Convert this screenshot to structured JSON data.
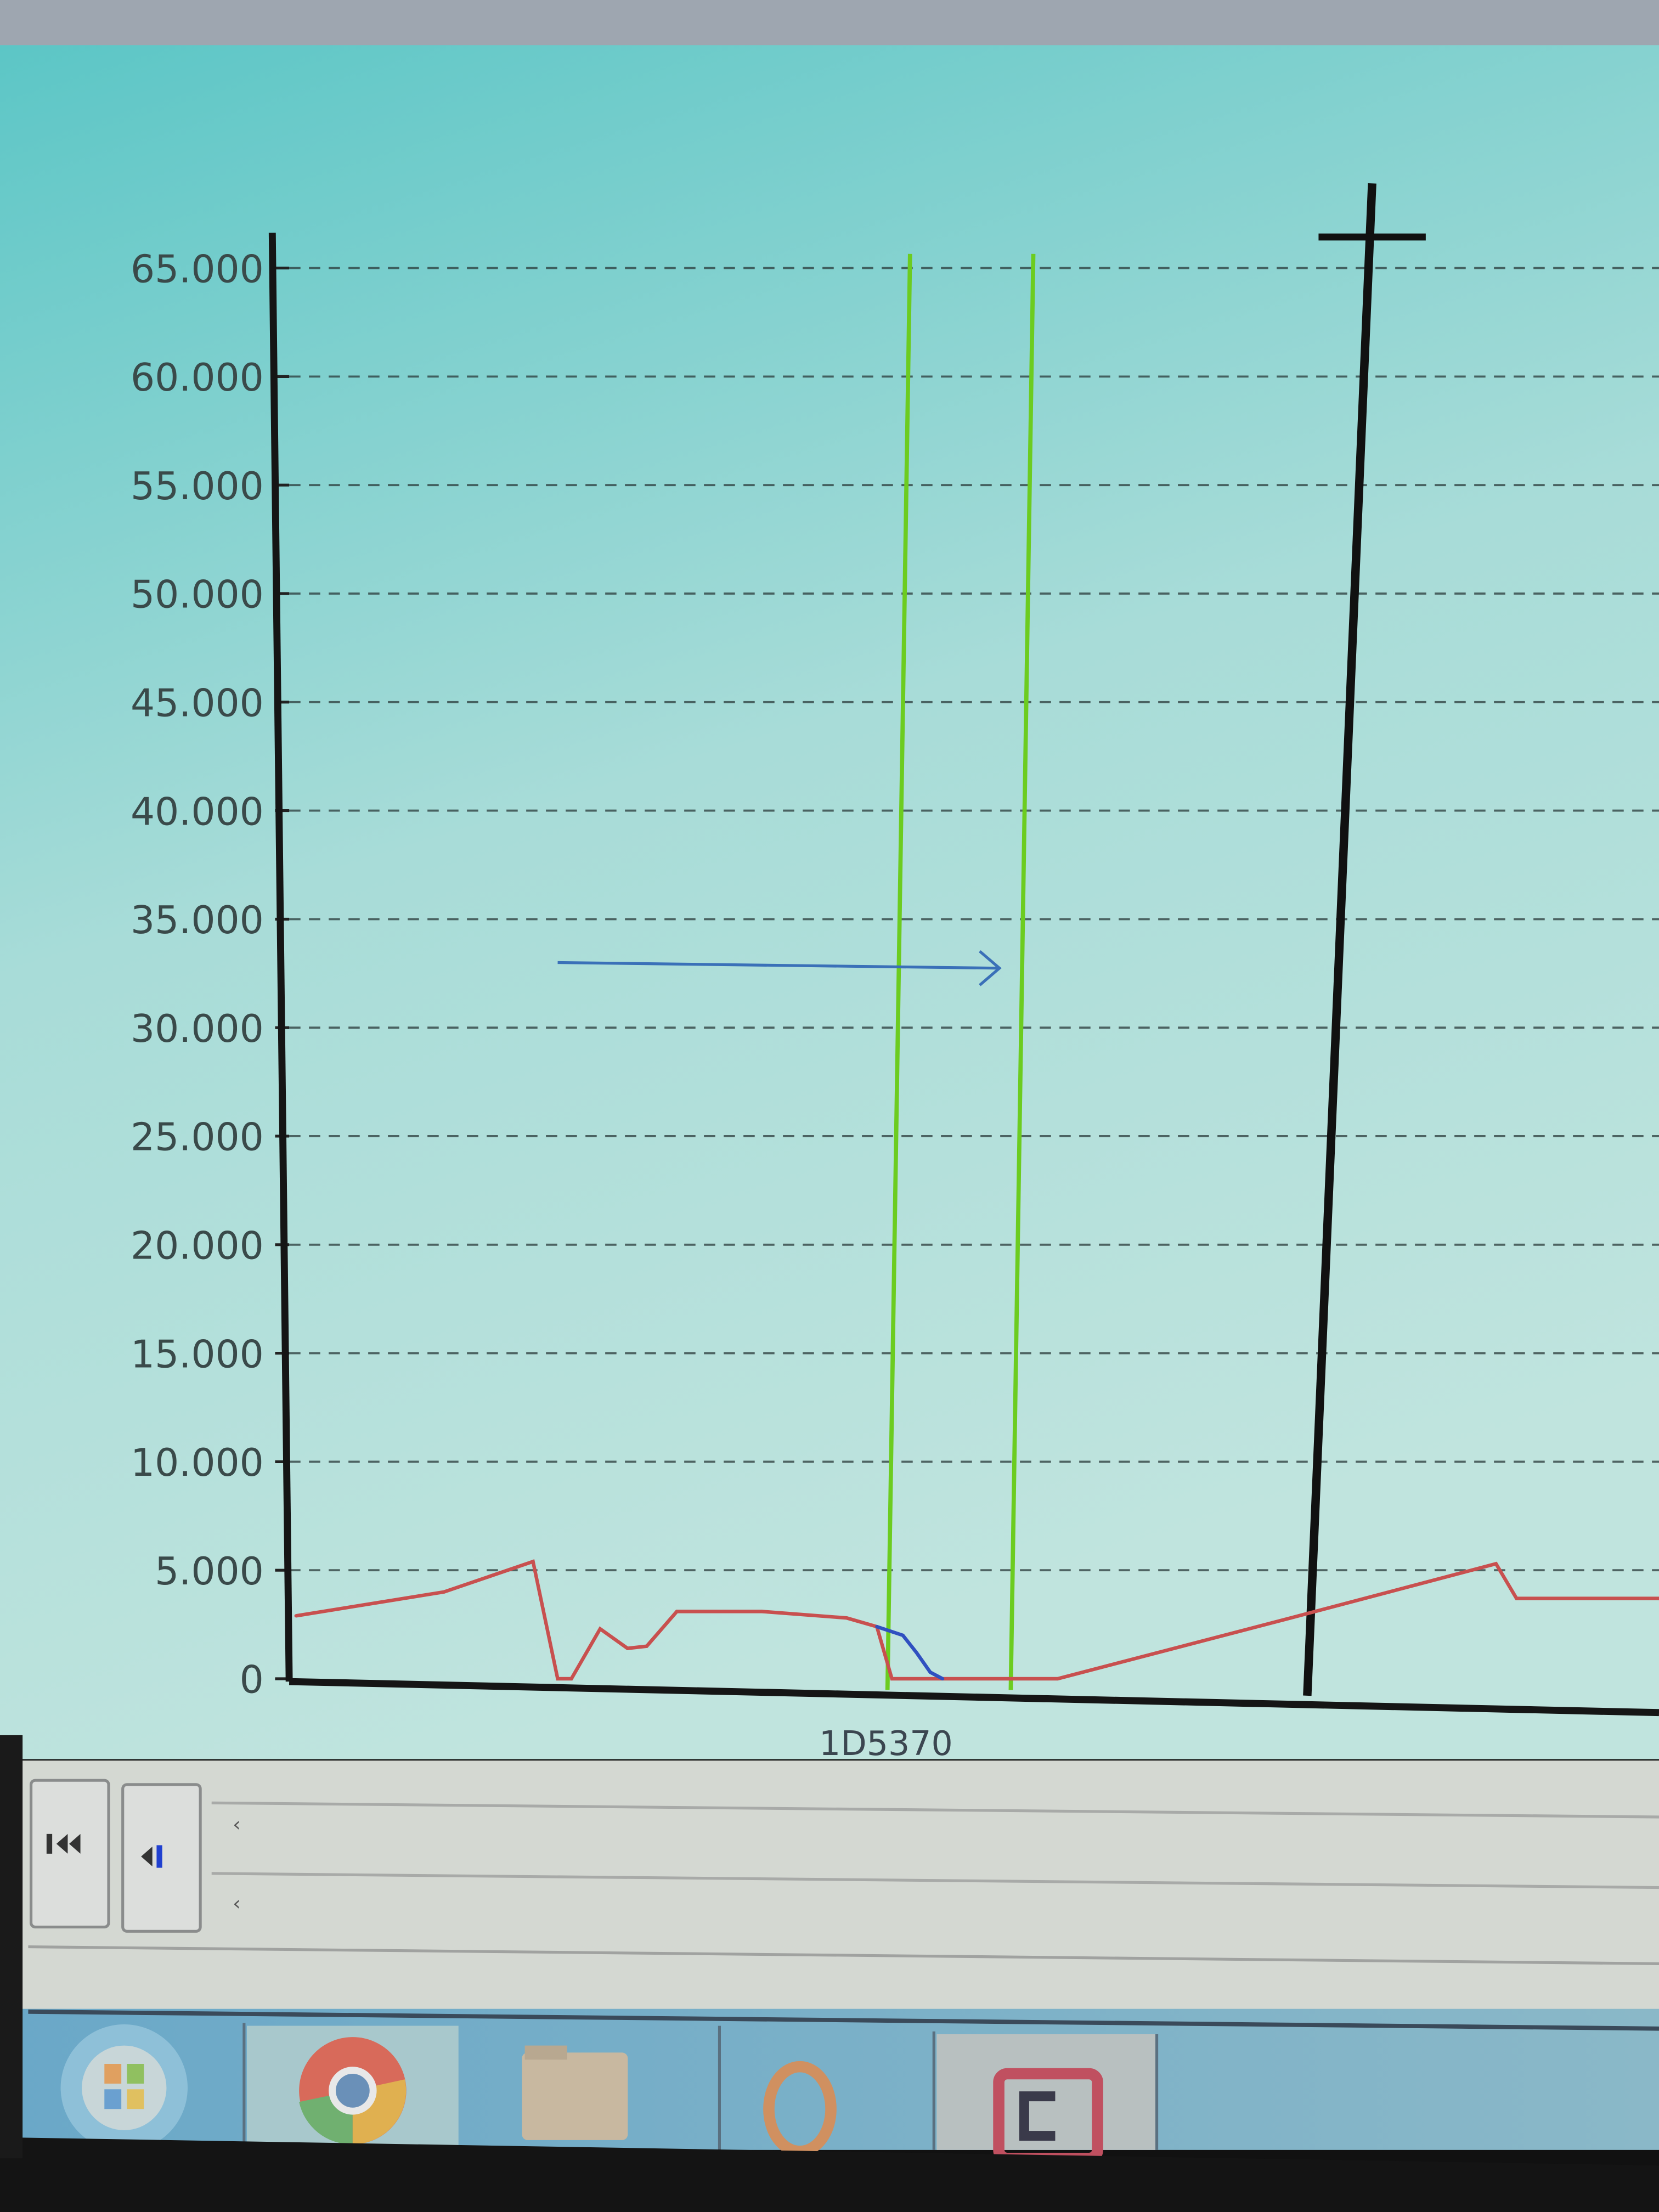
{
  "chart_data": {
    "type": "line",
    "title": "",
    "xlabel": "1D5370",
    "ylabel": "",
    "ylim": [
      0,
      65000
    ],
    "xlim": [
      0,
      100
    ],
    "grid": true,
    "yticks": [
      0,
      5000,
      10000,
      15000,
      20000,
      25000,
      30000,
      35000,
      40000,
      45000,
      50000,
      55000,
      60000,
      65000
    ],
    "ytick_labels": [
      "0",
      "5.000",
      "10.000",
      "15.000",
      "20.000",
      "25.000",
      "30.000",
      "35.000",
      "40.000",
      "45.000",
      "50.000",
      "55.000",
      "60.000",
      "65.000"
    ],
    "series": [
      {
        "color": "#c8504f",
        "x": [
          0.5,
          11.3,
          17.8,
          19.6,
          20.6,
          22.7,
          24.7,
          26.1,
          28.3,
          34.5,
          40.7,
          42.9,
          44.0,
          56.1,
          73.1,
          88.1,
          89.6,
          100
        ],
        "y": [
          2900,
          4000,
          5400,
          0,
          0,
          2300,
          1400,
          1500,
          3100,
          3100,
          2800,
          2400,
          0,
          0,
          2800,
          5300,
          3700,
          3700
        ]
      },
      {
        "color": "#3050c0",
        "x": [
          42.9,
          44.8,
          45.8,
          46.8,
          47.7
        ],
        "y": [
          2400,
          2000,
          1200,
          300,
          0
        ]
      }
    ],
    "markers": [
      {
        "type": "vertical-line",
        "color": "#6ccc20",
        "x": 44.5
      },
      {
        "type": "vertical-line",
        "color": "#6ccc20",
        "x": 53.5
      },
      {
        "type": "cursor-line",
        "color": "#111111",
        "x": 77.0
      },
      {
        "type": "arrow",
        "color": "#3a70b8",
        "y": 33000,
        "x_from": 19.6,
        "x_to": 53.5
      }
    ]
  },
  "controls": {
    "first_button_icon": "skip-to-start-icon",
    "step_back_button_icon": "step-back-icon"
  },
  "taskbar": {
    "items": [
      "start-orb-icon",
      "chrome-icon",
      "file-explorer-icon",
      "media-player-icon",
      "app-icon"
    ]
  },
  "colors": {
    "background_top": "#5cc6c6",
    "background_bottom": "#b8e2dc",
    "red_series": "#c8504f",
    "blue_series": "#3050c0",
    "green_marker": "#6ccc20"
  }
}
